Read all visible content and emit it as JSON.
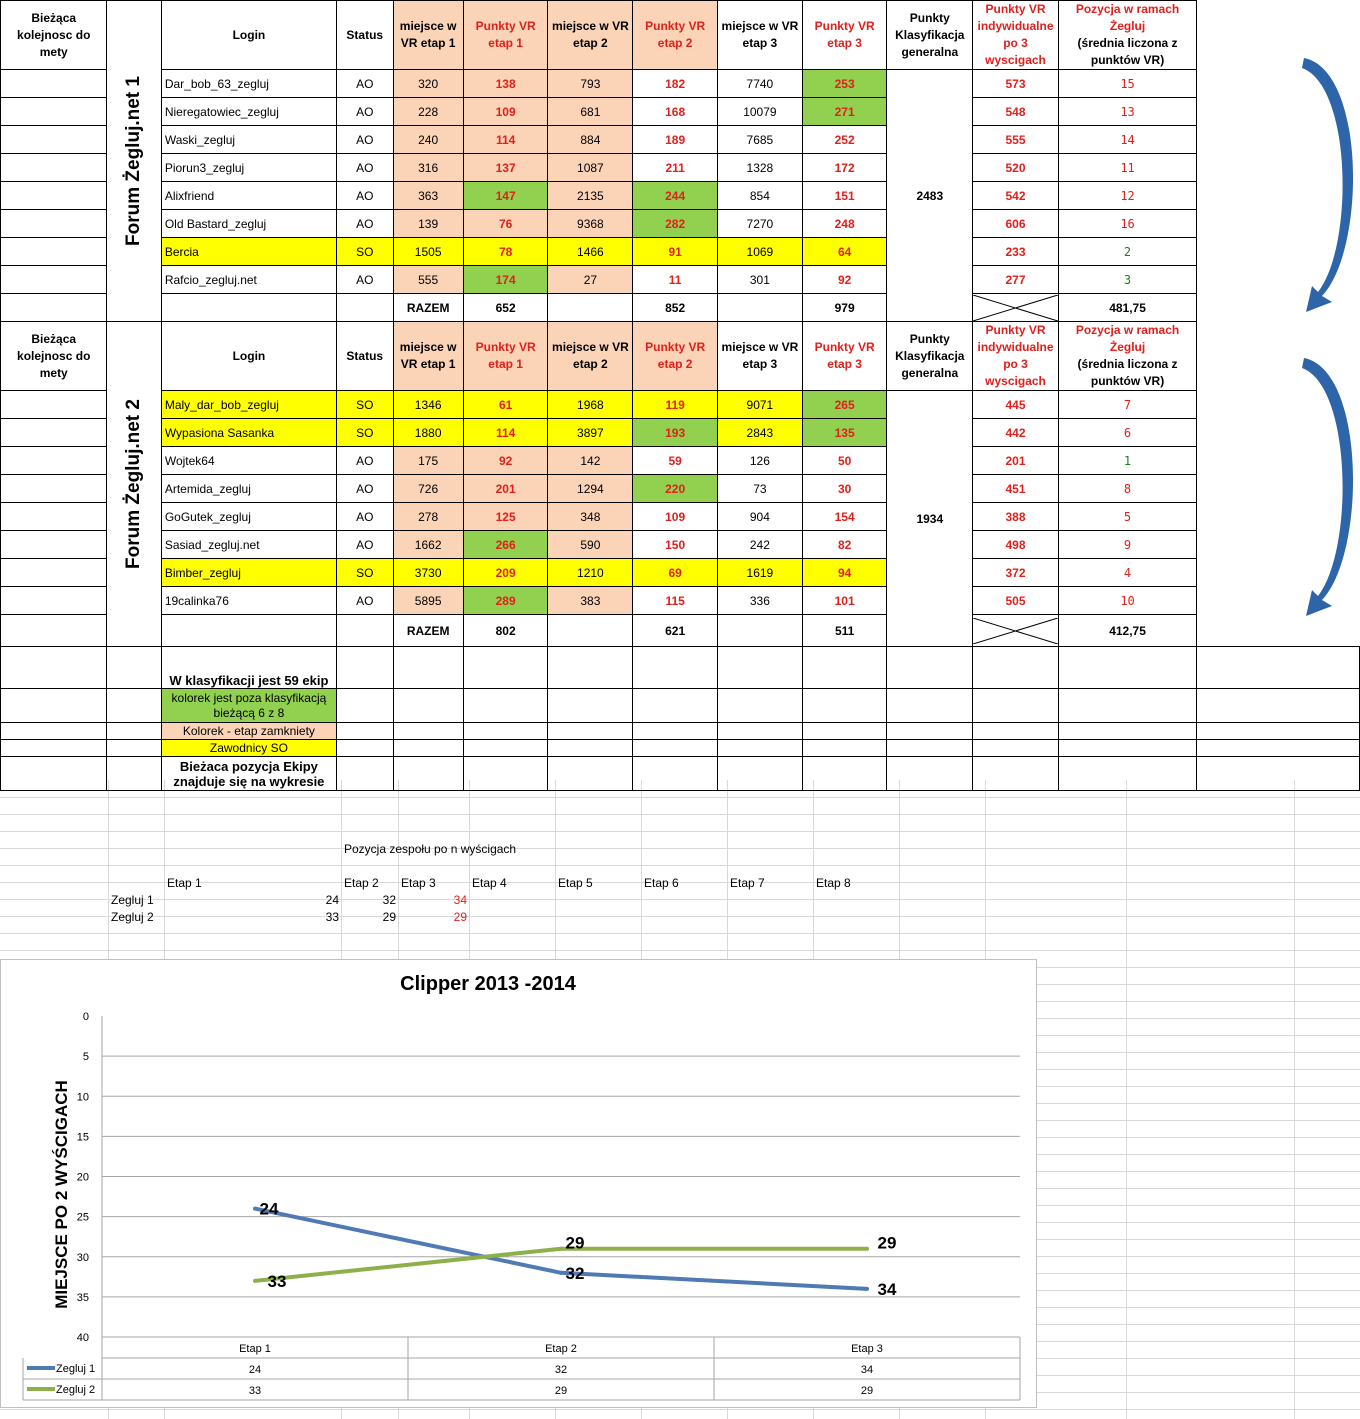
{
  "header": {
    "col_kolejnosc": "Bieżąca kolejnosc do mety",
    "col_login": "Login",
    "col_status": "Status",
    "col_m1": "miejsce w VR etap 1",
    "col_p1": "Punkty VR etap 1",
    "col_m2": "miejsce w VR etap 2",
    "col_p2": "Punkty VR etap 2",
    "col_m3": "miejsce w VR etap 3",
    "col_p3": "Punkty VR etap 3",
    "col_klas": "Punkty Klasyfikacja generalna",
    "col_ind": "Punkty VR indywidualne po 3 wyscigach",
    "col_pos_a": "Pozycja w ramach Żegluj",
    "col_pos_b": "(średnia liczona z punktów VR)"
  },
  "teams": [
    {
      "name": "Forum Żegluj.net 1",
      "klasyfikacja": "2483",
      "razem_label": "RAZEM",
      "razem_p1": "652",
      "razem_p2": "852",
      "razem_p3": "979",
      "total": "481,75",
      "rows": [
        {
          "login": "Dar_bob_63_zegluj",
          "status": "AO",
          "m1": "320",
          "p1": "138",
          "m2": "793",
          "p2": "182",
          "m3": "7740",
          "p3": "253",
          "ind": "573",
          "pos": "15"
        },
        {
          "login": "Nieregatowiec_zegluj",
          "status": "AO",
          "m1": "228",
          "p1": "109",
          "m2": "681",
          "p2": "168",
          "m3": "10079",
          "p3": "271",
          "ind": "548",
          "pos": "13"
        },
        {
          "login": "Waski_zegluj",
          "status": "AO",
          "m1": "240",
          "p1": "114",
          "m2": "884",
          "p2": "189",
          "m3": "7685",
          "p3": "252",
          "ind": "555",
          "pos": "14"
        },
        {
          "login": "Piorun3_zegluj",
          "status": "AO",
          "m1": "316",
          "p1": "137",
          "m2": "1087",
          "p2": "211",
          "m3": "1328",
          "p3": "172",
          "ind": "520",
          "pos": "11"
        },
        {
          "login": "Alixfriend",
          "status": "AO",
          "m1": "363",
          "p1": "147",
          "m2": "2135",
          "p2": "244",
          "m3": "854",
          "p3": "151",
          "ind": "542",
          "pos": "12"
        },
        {
          "login": "Old Bastard_zegluj",
          "status": "AO",
          "m1": "139",
          "p1": "76",
          "m2": "9368",
          "p2": "282",
          "m3": "7270",
          "p3": "248",
          "ind": "606",
          "pos": "16"
        },
        {
          "login": "Bercia",
          "status": "SO",
          "m1": "1505",
          "p1": "78",
          "m2": "1466",
          "p2": "91",
          "m3": "1069",
          "p3": "64",
          "ind": "233",
          "pos": "2"
        },
        {
          "login": "Rafcio_zegluj.net",
          "status": "AO",
          "m1": "555",
          "p1": "174",
          "m2": "27",
          "p2": "11",
          "m3": "301",
          "p3": "92",
          "ind": "277",
          "pos": "3"
        }
      ]
    },
    {
      "name": "Forum Żegluj.net 2",
      "klasyfikacja": "1934",
      "razem_label": "RAZEM",
      "razem_p1": "802",
      "razem_p2": "621",
      "razem_p3": "511",
      "total": "412,75",
      "rows": [
        {
          "login": "Maly_dar_bob_zegluj",
          "status": "SO",
          "m1": "1346",
          "p1": "61",
          "m2": "1968",
          "p2": "119",
          "m3": "9071",
          "p3": "265",
          "ind": "445",
          "pos": "7"
        },
        {
          "login": "Wypasiona Sasanka",
          "status": "SO",
          "m1": "1880",
          "p1": "114",
          "m2": "3897",
          "p2": "193",
          "m3": "2843",
          "p3": "135",
          "ind": "442",
          "pos": "6"
        },
        {
          "login": "Wojtek64",
          "status": "AO",
          "m1": "175",
          "p1": "92",
          "m2": "142",
          "p2": "59",
          "m3": "126",
          "p3": "50",
          "ind": "201",
          "pos": "1"
        },
        {
          "login": "Artemida_zegluj",
          "status": "AO",
          "m1": "726",
          "p1": "201",
          "m2": "1294",
          "p2": "220",
          "m3": "73",
          "p3": "30",
          "ind": "451",
          "pos": "8"
        },
        {
          "login": "GoGutek_zegluj",
          "status": "AO",
          "m1": "278",
          "p1": "125",
          "m2": "348",
          "p2": "109",
          "m3": "904",
          "p3": "154",
          "ind": "388",
          "pos": "5"
        },
        {
          "login": "Sasiad_zegluj.net",
          "status": "AO",
          "m1": "1662",
          "p1": "266",
          "m2": "590",
          "p2": "150",
          "m3": "242",
          "p3": "82",
          "ind": "498",
          "pos": "9"
        },
        {
          "login": "Bimber_zegluj",
          "status": "SO",
          "m1": "3730",
          "p1": "209",
          "m2": "1210",
          "p2": "69",
          "m3": "1619",
          "p3": "94",
          "ind": "372",
          "pos": "4"
        },
        {
          "login": "19calinka76",
          "status": "AO",
          "m1": "5895",
          "p1": "289",
          "m2": "383",
          "p2": "115",
          "m3": "336",
          "p3": "101",
          "ind": "505",
          "pos": "10"
        }
      ]
    }
  ],
  "legend": {
    "count_text": "W klasyfikacji jest 59 ekip",
    "green_text": "kolorek jest  poza klasyfikacją bieżącą 6 z 8",
    "peach_text": "Kolorek - etap zamkniety",
    "yellow_text": "Zawodnicy SO",
    "chart_note": "Bieżaca pozycja Ekipy znajduje się na wykresie"
  },
  "positions_table": {
    "title": "Pozycja zespołu po n wyścigach",
    "stages": [
      "Etap 1",
      "Etap 2",
      "Etap 3",
      "Etap 4",
      "Etap 5",
      "Etap 6",
      "Etap 7",
      "Etap 8"
    ],
    "rows": [
      {
        "name": "Zegluj 1",
        "values": [
          "24",
          "32",
          "34"
        ]
      },
      {
        "name": "Zegluj 2",
        "values": [
          "33",
          "29",
          "29"
        ]
      }
    ]
  },
  "colors": {
    "peach": "#fbd3b7",
    "yellow": "#ffff00",
    "green": "#92d050",
    "red_text": "#e0201c",
    "arrow_blue": "#2e64a8",
    "series1": "#4f7ab3",
    "series2": "#8db04a"
  },
  "chart_data": {
    "type": "line",
    "title": "Clipper 2013 -2014",
    "ylabel": "MIEJSCE PO 2 WYŚCIGACH",
    "xlabel": "",
    "categories": [
      "Etap 1",
      "Etap 2",
      "Etap 3"
    ],
    "yticks": [
      "0",
      "5",
      "10",
      "15",
      "20",
      "25",
      "30",
      "35",
      "40"
    ],
    "ylim": [
      0,
      40
    ],
    "y_inverted": true,
    "grid": true,
    "data_table": true,
    "series": [
      {
        "name": "Zegluj 1",
        "values": [
          24,
          32,
          34
        ]
      },
      {
        "name": "Zegluj 2",
        "values": [
          33,
          29,
          29
        ]
      }
    ]
  }
}
